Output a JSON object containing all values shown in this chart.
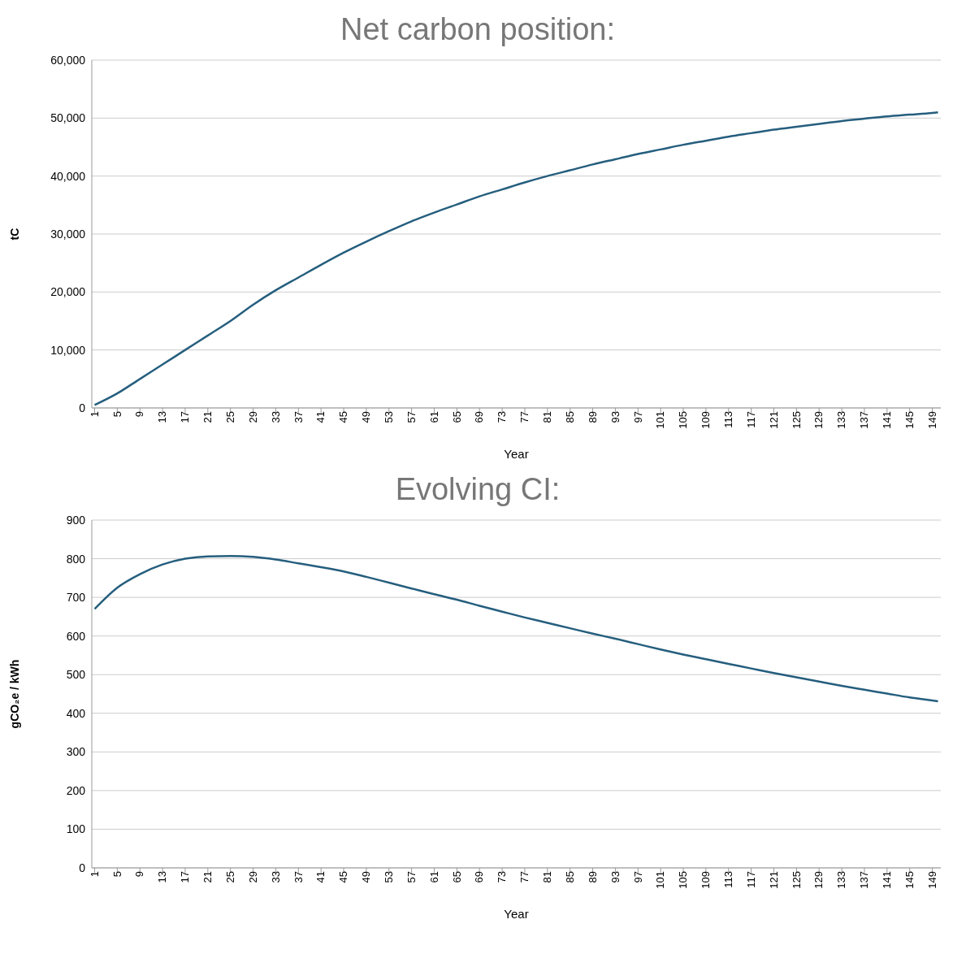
{
  "chart_data": [
    {
      "type": "line",
      "title": "Net carbon position:",
      "xlabel": "Year",
      "ylabel": "tC",
      "xlim": [
        0.5,
        150.5
      ],
      "xticks": [
        1,
        5,
        9,
        13,
        17,
        21,
        25,
        29,
        33,
        37,
        41,
        45,
        49,
        53,
        57,
        61,
        65,
        69,
        73,
        77,
        81,
        85,
        89,
        93,
        97,
        101,
        105,
        109,
        113,
        117,
        121,
        125,
        129,
        133,
        137,
        141,
        145,
        149
      ],
      "ylim": [
        0,
        60000
      ],
      "yticks": [
        0,
        {
          "value": 10000,
          "label": "10,000"
        },
        {
          "value": 20000,
          "label": "20,000"
        },
        {
          "value": 30000,
          "label": "30,000"
        },
        {
          "value": 40000,
          "label": "40,000"
        },
        {
          "value": 50000,
          "label": "50,000"
        },
        {
          "value": 60000,
          "label": "60,000"
        }
      ],
      "grid": "y",
      "legend": false,
      "marker": "none",
      "x": [
        1,
        5,
        9,
        13,
        17,
        21,
        25,
        29,
        33,
        37,
        41,
        45,
        49,
        53,
        57,
        61,
        65,
        69,
        73,
        77,
        81,
        85,
        89,
        93,
        97,
        101,
        105,
        109,
        113,
        117,
        121,
        125,
        129,
        133,
        137,
        141,
        145,
        149,
        150
      ],
      "series": [
        {
          "color": "#255e7e",
          "values": [
            500,
            2500,
            5000,
            7500,
            10000,
            12500,
            15000,
            17800,
            20300,
            22500,
            24700,
            26800,
            28700,
            30500,
            32200,
            33700,
            35100,
            36500,
            37700,
            38900,
            40000,
            41000,
            42000,
            42900,
            43800,
            44600,
            45400,
            46100,
            46800,
            47400,
            48000,
            48500,
            49000,
            49500,
            49900,
            50300,
            50600,
            50900,
            51000
          ]
        }
      ]
    },
    {
      "type": "line",
      "title": "Evolving CI:",
      "xlabel": "Year",
      "ylabel": "gCO₂e / kWh",
      "xlim": [
        0.5,
        150.5
      ],
      "xticks": [
        1,
        5,
        9,
        13,
        17,
        21,
        25,
        29,
        33,
        37,
        41,
        45,
        49,
        53,
        57,
        61,
        65,
        69,
        73,
        77,
        81,
        85,
        89,
        93,
        97,
        101,
        105,
        109,
        113,
        117,
        121,
        125,
        129,
        133,
        137,
        141,
        145,
        149
      ],
      "ylim": [
        0,
        900
      ],
      "yticks": [
        0,
        100,
        200,
        300,
        400,
        500,
        600,
        700,
        800,
        900
      ],
      "grid": "y",
      "legend": false,
      "marker": "none",
      "x": [
        1,
        5,
        9,
        13,
        17,
        21,
        25,
        29,
        33,
        37,
        41,
        45,
        49,
        53,
        57,
        61,
        65,
        69,
        73,
        77,
        81,
        85,
        89,
        93,
        97,
        101,
        105,
        109,
        113,
        117,
        121,
        125,
        129,
        133,
        137,
        141,
        145,
        149,
        150
      ],
      "series": [
        {
          "color": "#255e7e",
          "values": [
            670,
            725,
            760,
            785,
            800,
            806,
            807,
            805,
            798,
            788,
            778,
            767,
            753,
            738,
            723,
            708,
            694,
            678,
            663,
            648,
            634,
            620,
            606,
            593,
            579,
            565,
            552,
            540,
            528,
            516,
            504,
            493,
            482,
            471,
            461,
            451,
            441,
            433,
            431
          ]
        }
      ]
    }
  ]
}
